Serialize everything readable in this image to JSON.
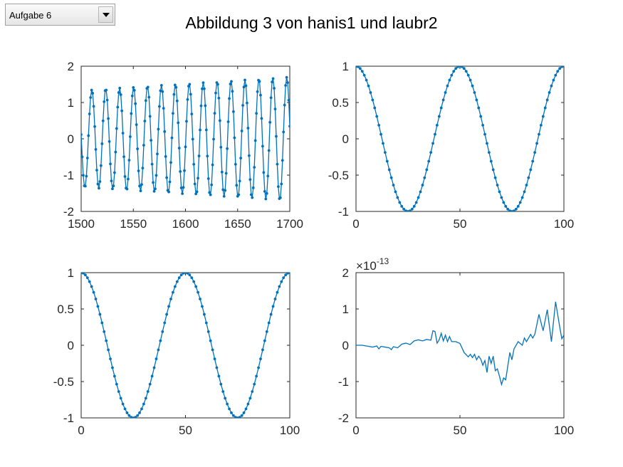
{
  "dropdown": {
    "selected": "Aufgabe 6"
  },
  "figure": {
    "title": "Abbildung 3 von hanis1 und laubr2"
  },
  "colors": {
    "line": "#0072bd",
    "axis": "#262626",
    "background": "#ffffff"
  },
  "icons": {
    "dropdown_arrow": "chevron-down-icon"
  },
  "chart_data": [
    {
      "type": "line",
      "title": "",
      "xlabel": "",
      "ylabel": "",
      "markers": true,
      "xlim": [
        1500,
        1700
      ],
      "ylim": [
        -2,
        2
      ],
      "xticks": [
        1500,
        1550,
        1600,
        1650,
        1700
      ],
      "yticks": [
        -2,
        -1,
        0,
        1,
        2
      ],
      "series": [
        {
          "function": "A(x)*cos(2*pi*(x-1510.2)/13.35)",
          "amplitude_start": 1.33,
          "amplitude_end": 1.7,
          "x_start": 1500,
          "x_end": 1700,
          "x_step": 1
        }
      ]
    },
    {
      "type": "line",
      "title": "",
      "xlabel": "",
      "ylabel": "",
      "markers": true,
      "xlim": [
        0,
        100
      ],
      "ylim": [
        -1,
        1
      ],
      "xticks": [
        0,
        50,
        100
      ],
      "yticks": [
        -1,
        -0.5,
        0,
        0.5,
        1
      ],
      "series": [
        {
          "function": "cos(2*pi*x/50)",
          "x_start": 0,
          "x_end": 100,
          "x_step": 1
        }
      ]
    },
    {
      "type": "line",
      "title": "",
      "xlabel": "",
      "ylabel": "",
      "markers": true,
      "xlim": [
        0,
        100
      ],
      "ylim": [
        -1,
        1
      ],
      "xticks": [
        0,
        50,
        100
      ],
      "yticks": [
        -1,
        -0.5,
        0,
        0.5,
        1
      ],
      "series": [
        {
          "function": "cos(2*pi*x/50)",
          "x_start": 0,
          "x_end": 100,
          "x_step": 1
        }
      ]
    },
    {
      "type": "line",
      "title": "",
      "xlabel": "",
      "ylabel": "",
      "markers": false,
      "xlim": [
        0,
        100
      ],
      "ylim": [
        -2,
        2
      ],
      "xticks": [
        0,
        50,
        100
      ],
      "yticks": [
        -2,
        -1,
        0,
        1,
        2
      ],
      "exponent_base": "×10",
      "exponent": "-13",
      "series": [
        {
          "x": [
            0,
            3,
            6,
            8,
            10,
            11,
            12,
            14,
            16,
            17,
            18,
            20,
            22,
            24,
            26,
            28,
            30,
            32,
            34,
            36,
            37,
            38,
            39,
            40,
            41,
            42,
            43,
            44,
            45,
            46,
            48,
            50,
            52,
            54,
            55,
            56,
            57,
            58,
            59,
            60,
            61,
            62,
            63,
            64,
            65,
            66,
            67,
            68,
            69,
            70,
            71,
            72,
            74,
            75,
            76,
            78,
            80,
            81,
            82,
            84,
            85,
            86,
            88,
            90,
            92,
            94,
            96,
            98,
            99,
            100
          ],
          "y": [
            0,
            0,
            -0.03,
            -0.05,
            -0.02,
            -0.1,
            -0.03,
            -0.05,
            -0.07,
            -0.12,
            -0.04,
            -0.07,
            0.03,
            0.06,
            0.02,
            0.12,
            0.15,
            0.12,
            0.16,
            0.14,
            0.4,
            0.38,
            0.06,
            0.15,
            0.33,
            0.12,
            0.28,
            0.1,
            0.24,
            0.1,
            0.1,
            0.05,
            -0.2,
            -0.32,
            -0.25,
            -0.34,
            -0.25,
            -0.4,
            -0.3,
            -0.38,
            -0.55,
            -0.42,
            -0.75,
            -0.3,
            -0.5,
            -0.3,
            -0.7,
            -0.65,
            -0.85,
            -1.08,
            -0.9,
            -0.95,
            -0.2,
            -0.4,
            -0.1,
            0.1,
            0.0,
            0.2,
            0.1,
            0.3,
            0.2,
            0.3,
            0.85,
            0.4,
            0.98,
            0.1,
            1.2,
            0.5,
            0.18,
            0.28
          ]
        }
      ]
    }
  ]
}
